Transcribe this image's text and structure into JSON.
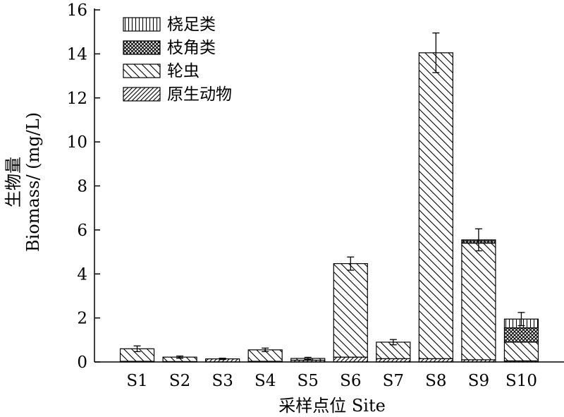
{
  "chart_data": {
    "type": "bar",
    "stacked": true,
    "categories": [
      "S1",
      "S2",
      "S3",
      "S4",
      "S5",
      "S6",
      "S7",
      "S8",
      "S9",
      "S10"
    ],
    "series": [
      {
        "name": "原生动物",
        "pattern": "hatch-fine",
        "values": [
          0.03,
          0.02,
          0.14,
          0.03,
          0.08,
          0.22,
          0.15,
          0.15,
          0.1,
          0.05
        ]
      },
      {
        "name": "轮虫",
        "pattern": "hatch-back",
        "values": [
          0.57,
          0.2,
          0.0,
          0.52,
          0.08,
          4.25,
          0.75,
          13.9,
          5.3,
          0.85
        ]
      },
      {
        "name": "枝角类",
        "pattern": "crosshatch",
        "values": [
          0.0,
          0.0,
          0.0,
          0.0,
          0.0,
          0.0,
          0.0,
          0.0,
          0.1,
          0.65
        ]
      },
      {
        "name": "桡足类",
        "pattern": "vertical",
        "values": [
          0.0,
          0.0,
          0.0,
          0.0,
          0.0,
          0.0,
          0.0,
          0.0,
          0.05,
          0.4
        ]
      }
    ],
    "error": [
      0.13,
      0.05,
      0.03,
      0.08,
      0.05,
      0.3,
      0.12,
      0.9,
      0.5,
      0.3
    ],
    "yticks": [
      "0",
      "2",
      "4",
      "6",
      "8",
      "10",
      "12",
      "14",
      "16"
    ],
    "ylim": [
      0,
      16
    ],
    "ylabel_line1": "生物量",
    "ylabel_line2": "Biomass/ (mg/L)",
    "xlabel": "采样点位 Site",
    "legend_position": "top-left",
    "grid": false
  }
}
